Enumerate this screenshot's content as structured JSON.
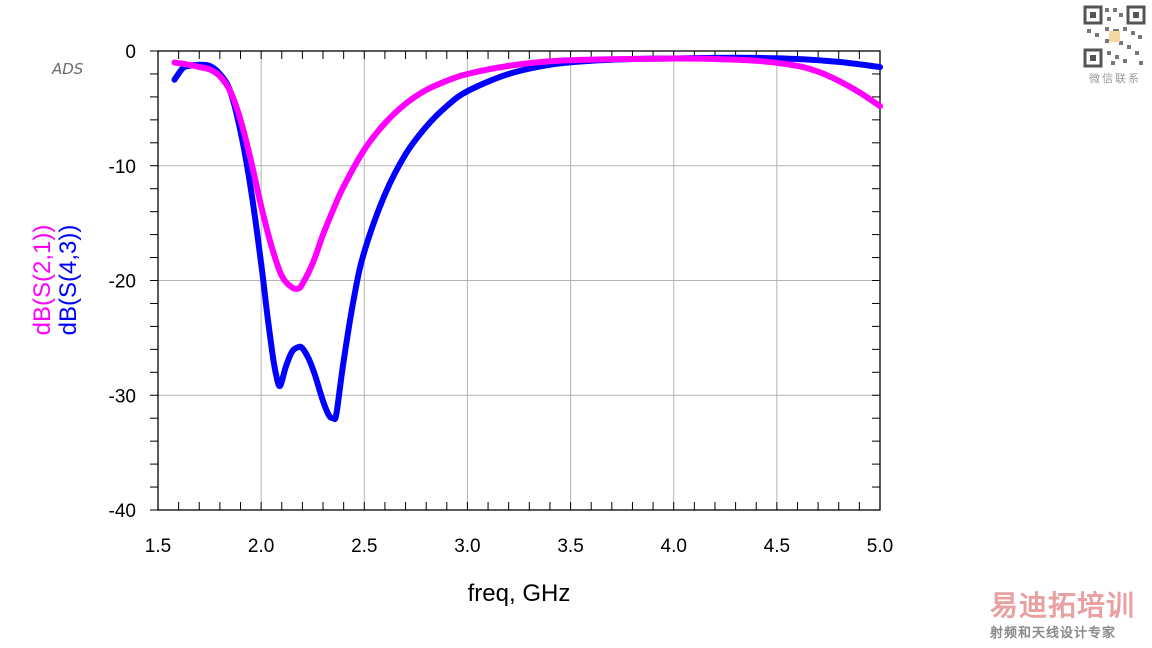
{
  "chart_data": {
    "type": "line",
    "xlabel": "freq, GHz",
    "ylabels": [
      "dB(S(2,1))",
      "dB(S(4,3))"
    ],
    "xlim": [
      1.5,
      5.0
    ],
    "ylim": [
      -40,
      0
    ],
    "xticks": [
      "1.5",
      "2.0",
      "2.5",
      "3.0",
      "3.5",
      "4.0",
      "4.5",
      "5.0"
    ],
    "yticks": [
      "0",
      "-10",
      "-20",
      "-30",
      "-40"
    ],
    "grid": true,
    "series": [
      {
        "name": "dB(S(2,1))",
        "color": "#ff00ff",
        "x": [
          1.58,
          1.65,
          1.7,
          1.75,
          1.8,
          1.85,
          1.9,
          1.95,
          2.0,
          2.05,
          2.1,
          2.15,
          2.18,
          2.2,
          2.25,
          2.3,
          2.35,
          2.4,
          2.5,
          2.6,
          2.7,
          2.8,
          2.9,
          3.0,
          3.2,
          3.4,
          3.6,
          3.8,
          4.0,
          4.2,
          4.4,
          4.6,
          4.7,
          4.8,
          4.9,
          5.0
        ],
        "y": [
          -1.0,
          -1.2,
          -1.4,
          -1.6,
          -2.2,
          -3.5,
          -6.0,
          -9.5,
          -13.5,
          -17.0,
          -19.6,
          -20.6,
          -20.7,
          -20.3,
          -18.5,
          -16.0,
          -13.8,
          -11.8,
          -8.6,
          -6.3,
          -4.6,
          -3.4,
          -2.6,
          -2.0,
          -1.3,
          -0.9,
          -0.75,
          -0.7,
          -0.65,
          -0.7,
          -0.85,
          -1.3,
          -1.8,
          -2.6,
          -3.6,
          -4.8
        ]
      },
      {
        "name": "dB(S(4,3))",
        "color": "#0000ff",
        "x": [
          1.58,
          1.62,
          1.65,
          1.7,
          1.75,
          1.8,
          1.85,
          1.9,
          1.95,
          2.0,
          2.03,
          2.06,
          2.08,
          2.09,
          2.1,
          2.12,
          2.15,
          2.18,
          2.2,
          2.23,
          2.26,
          2.3,
          2.33,
          2.35,
          2.36,
          2.37,
          2.4,
          2.45,
          2.5,
          2.6,
          2.7,
          2.8,
          2.9,
          3.0,
          3.2,
          3.4,
          3.6,
          3.8,
          4.0,
          4.2,
          4.4,
          4.6,
          4.8,
          5.0
        ],
        "y": [
          -2.5,
          -1.5,
          -1.3,
          -1.2,
          -1.3,
          -2.0,
          -3.5,
          -7.0,
          -12.0,
          -18.5,
          -23.0,
          -27.0,
          -28.8,
          -29.2,
          -28.8,
          -27.5,
          -26.2,
          -25.8,
          -25.9,
          -26.8,
          -28.2,
          -30.5,
          -31.8,
          -32.0,
          -32.0,
          -31.0,
          -27.0,
          -21.5,
          -17.5,
          -12.5,
          -9.0,
          -6.6,
          -4.8,
          -3.5,
          -2.0,
          -1.2,
          -0.85,
          -0.7,
          -0.65,
          -0.6,
          -0.6,
          -0.7,
          -0.95,
          -1.4
        ]
      }
    ]
  },
  "watermark": {
    "ads": "ADS",
    "qr_caption": "微信联系",
    "brand_name": "易迪拓培训",
    "brand_tag": "射频和天线设计专家"
  }
}
